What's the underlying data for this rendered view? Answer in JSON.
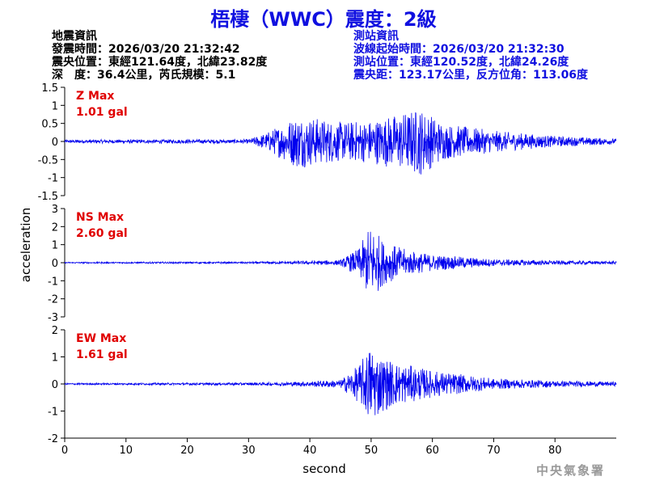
{
  "header": {
    "title": "梧棲（WWC）震度：2級"
  },
  "quake_info": {
    "lines": [
      "地震資訊",
      "發震時間：2026/03/20 21:32:42",
      "震央位置：東經121.64度，北緯23.82度",
      "深　度：36.4公里，芮氏規模：5.1"
    ]
  },
  "station_info": {
    "lines": [
      "測站資訊",
      "波線起始時間：2026/03/20 21:32:30",
      "測站位置：東經120.52度，北緯24.26度",
      "震央距：123.17公里，反方位角：113.06度"
    ]
  },
  "footer": {
    "stamp": "中央氣象署"
  },
  "colors": {
    "trace": "#0000ee",
    "max_label": "#e00000",
    "title": "#1010e0"
  },
  "chart_data": {
    "type": "line",
    "xlabel": "second",
    "ylabel": "acceleration",
    "xlim": [
      0,
      90
    ],
    "xticks": [
      0,
      10,
      20,
      30,
      40,
      50,
      60,
      70,
      80
    ],
    "panels": [
      {
        "name": "Z",
        "max_label": "Z Max",
        "max_value": "1.01 gal",
        "ylim": [
          -1.5,
          1.5
        ],
        "yticks": [
          "1.5",
          "1",
          "0.5",
          "0",
          "-0.5",
          "-1",
          "-1.5"
        ],
        "envelope": [
          [
            0,
            0.05
          ],
          [
            30,
            0.06
          ],
          [
            33,
            0.25
          ],
          [
            38,
            0.75
          ],
          [
            45,
            0.55
          ],
          [
            50,
            0.6
          ],
          [
            55,
            0.8
          ],
          [
            58,
            0.95
          ],
          [
            62,
            0.5
          ],
          [
            70,
            0.3
          ],
          [
            80,
            0.15
          ],
          [
            90,
            0.08
          ]
        ]
      },
      {
        "name": "NS",
        "max_label": "NS Max",
        "max_value": "2.60 gal",
        "ylim": [
          -3,
          3
        ],
        "yticks": [
          "3",
          "2",
          "1",
          "0",
          "-1",
          "-2",
          "-3"
        ],
        "envelope": [
          [
            0,
            0.04
          ],
          [
            30,
            0.05
          ],
          [
            36,
            0.08
          ],
          [
            45,
            0.15
          ],
          [
            48,
            0.8
          ],
          [
            50,
            2.2
          ],
          [
            52,
            1.2
          ],
          [
            56,
            0.7
          ],
          [
            60,
            0.45
          ],
          [
            70,
            0.2
          ],
          [
            80,
            0.12
          ],
          [
            90,
            0.08
          ]
        ]
      },
      {
        "name": "EW",
        "max_label": "EW Max",
        "max_value": "1.61 gal",
        "ylim": [
          -2,
          2
        ],
        "yticks": [
          "2",
          "1",
          "0",
          "-1",
          "-2"
        ],
        "envelope": [
          [
            0,
            0.03
          ],
          [
            30,
            0.05
          ],
          [
            36,
            0.07
          ],
          [
            45,
            0.15
          ],
          [
            48,
            0.7
          ],
          [
            50,
            1.5
          ],
          [
            52,
            1.0
          ],
          [
            55,
            0.75
          ],
          [
            60,
            0.5
          ],
          [
            70,
            0.2
          ],
          [
            80,
            0.12
          ],
          [
            90,
            0.08
          ]
        ]
      }
    ]
  }
}
